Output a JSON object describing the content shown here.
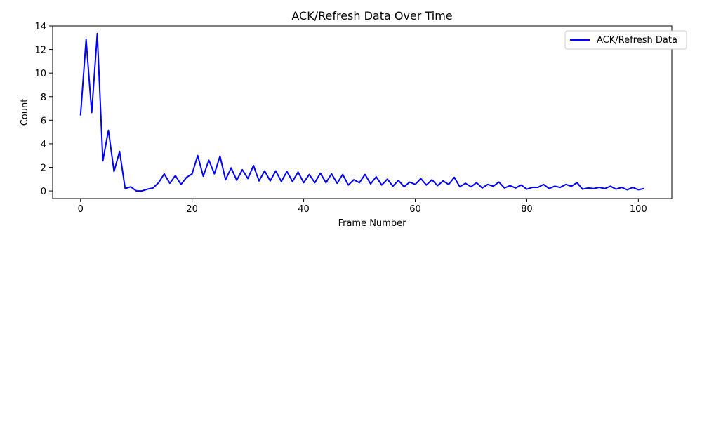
{
  "chart_data": {
    "type": "line",
    "title": "ACK/Refresh Data Over Time",
    "xlabel": "Frame Number",
    "ylabel": "Count",
    "xlim": [
      -5,
      106
    ],
    "ylim": [
      -0.65,
      14
    ],
    "xticks": [
      0,
      20,
      40,
      60,
      80,
      100
    ],
    "yticks": [
      0,
      2,
      4,
      6,
      8,
      10,
      12,
      14
    ],
    "grid": false,
    "legend_position": "upper right",
    "series": [
      {
        "name": "ACK/Refresh Data",
        "color": "#0000ff",
        "x": [
          0,
          1,
          2,
          3,
          4,
          5,
          6,
          7,
          8,
          9,
          10,
          11,
          12,
          13,
          14,
          15,
          16,
          17,
          18,
          19,
          20,
          21,
          22,
          23,
          24,
          25,
          26,
          27,
          28,
          29,
          30,
          31,
          32,
          33,
          34,
          35,
          36,
          37,
          38,
          39,
          40,
          41,
          42,
          43,
          44,
          45,
          46,
          47,
          48,
          49,
          50,
          51,
          52,
          53,
          54,
          55,
          56,
          57,
          58,
          59,
          60,
          61,
          62,
          63,
          64,
          65,
          66,
          67,
          68,
          69,
          70,
          71,
          72,
          73,
          74,
          75,
          76,
          77,
          78,
          79,
          80,
          81,
          82,
          83,
          84,
          85,
          86,
          87,
          88,
          89,
          90,
          91,
          92,
          93,
          94,
          95,
          96,
          97,
          98,
          99,
          100,
          101
        ],
        "values": [
          6.4,
          12.85,
          6.65,
          13.35,
          2.55,
          5.15,
          1.65,
          3.35,
          0.2,
          0.35,
          0.0,
          0.0,
          0.15,
          0.25,
          0.7,
          1.45,
          0.65,
          1.3,
          0.55,
          1.15,
          1.45,
          3.0,
          1.25,
          2.6,
          1.45,
          2.95,
          0.95,
          1.95,
          0.9,
          1.8,
          1.05,
          2.15,
          0.85,
          1.7,
          0.85,
          1.7,
          0.8,
          1.65,
          0.8,
          1.6,
          0.7,
          1.4,
          0.7,
          1.5,
          0.7,
          1.45,
          0.65,
          1.4,
          0.5,
          0.95,
          0.7,
          1.4,
          0.6,
          1.2,
          0.5,
          1.0,
          0.4,
          0.9,
          0.35,
          0.75,
          0.55,
          1.05,
          0.5,
          0.95,
          0.45,
          0.85,
          0.55,
          1.15,
          0.35,
          0.65,
          0.35,
          0.7,
          0.25,
          0.55,
          0.4,
          0.75,
          0.25,
          0.45,
          0.25,
          0.5,
          0.15,
          0.3,
          0.3,
          0.55,
          0.2,
          0.4,
          0.3,
          0.55,
          0.4,
          0.7,
          0.15,
          0.25,
          0.2,
          0.3,
          0.2,
          0.4,
          0.15,
          0.3,
          0.1,
          0.3,
          0.1,
          0.2
        ]
      }
    ]
  }
}
